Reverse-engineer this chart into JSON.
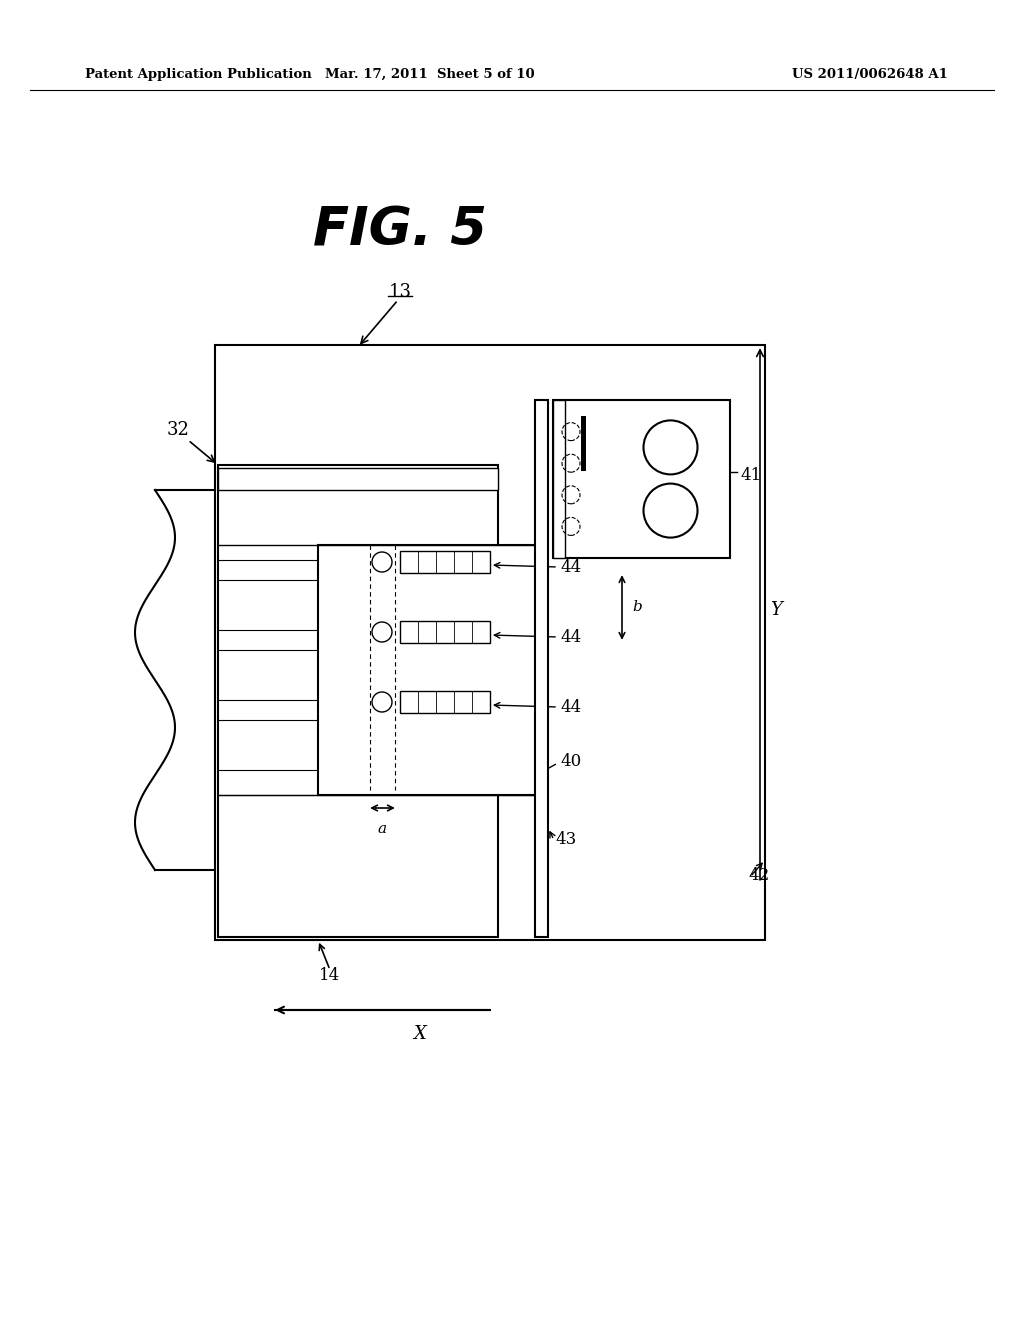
{
  "bg_color": "#ffffff",
  "line_color": "#000000",
  "header_left": "Patent Application Publication",
  "header_mid": "Mar. 17, 2011  Sheet 5 of 10",
  "header_right": "US 2011/0062648 A1",
  "fig_title": "FIG. 5"
}
